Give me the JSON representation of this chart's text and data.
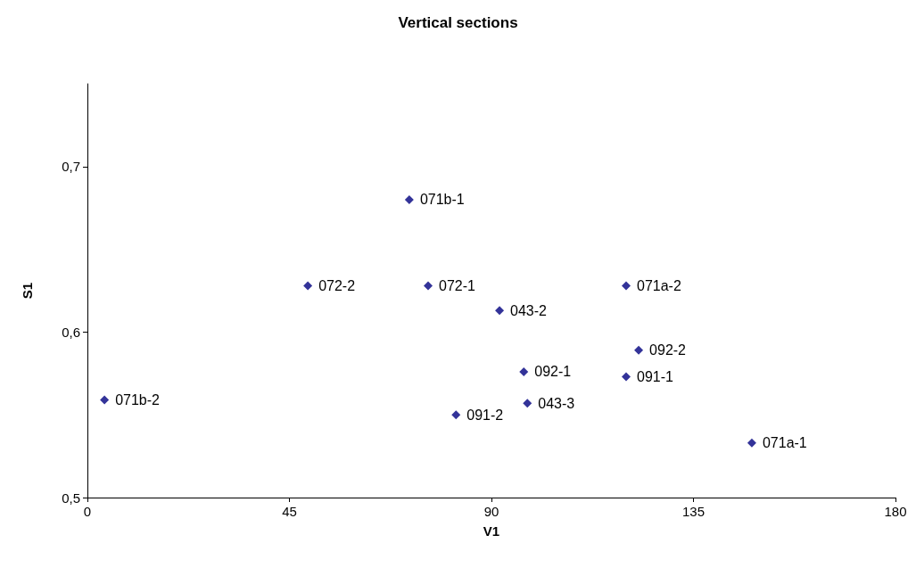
{
  "chart_data": {
    "type": "scatter",
    "title": "Vertical sections",
    "xlabel": "V1",
    "ylabel": "S1",
    "x": [
      71.7,
      49.1,
      75.9,
      91.8,
      120.0,
      122.8,
      97.2,
      120.0,
      3.8,
      98.0,
      82.1,
      148.0
    ],
    "values": [
      0.68,
      0.628,
      0.628,
      0.613,
      0.628,
      0.589,
      0.576,
      0.573,
      0.559,
      0.557,
      0.55,
      0.533
    ],
    "color": "#000080",
    "marker": "diamond",
    "grid": false,
    "xlim": [
      0,
      180
    ],
    "xticks": [
      0,
      45,
      90,
      135,
      180
    ],
    "ylim": [
      0.5,
      0.75
    ],
    "yticks": [
      {
        "value": 0.5,
        "label": "0,5"
      },
      {
        "value": 0.6,
        "label": "0,6"
      },
      {
        "value": 0.7,
        "label": "0,7"
      }
    ],
    "annotations": [
      {
        "text": "071b-1",
        "x": 71.7,
        "y": 0.68
      },
      {
        "text": "072-2",
        "x": 49.1,
        "y": 0.628
      },
      {
        "text": "072-1",
        "x": 75.9,
        "y": 0.628
      },
      {
        "text": "043-2",
        "x": 91.8,
        "y": 0.613
      },
      {
        "text": "071a-2",
        "x": 120.0,
        "y": 0.628
      },
      {
        "text": "092-2",
        "x": 122.8,
        "y": 0.589
      },
      {
        "text": "092-1",
        "x": 97.2,
        "y": 0.576
      },
      {
        "text": "091-1",
        "x": 120.0,
        "y": 0.573
      },
      {
        "text": "071b-2",
        "x": 3.8,
        "y": 0.559
      },
      {
        "text": "043-3",
        "x": 98.0,
        "y": 0.557
      },
      {
        "text": "091-2",
        "x": 82.1,
        "y": 0.55
      },
      {
        "text": "071a-1",
        "x": 148.0,
        "y": 0.533
      }
    ]
  }
}
